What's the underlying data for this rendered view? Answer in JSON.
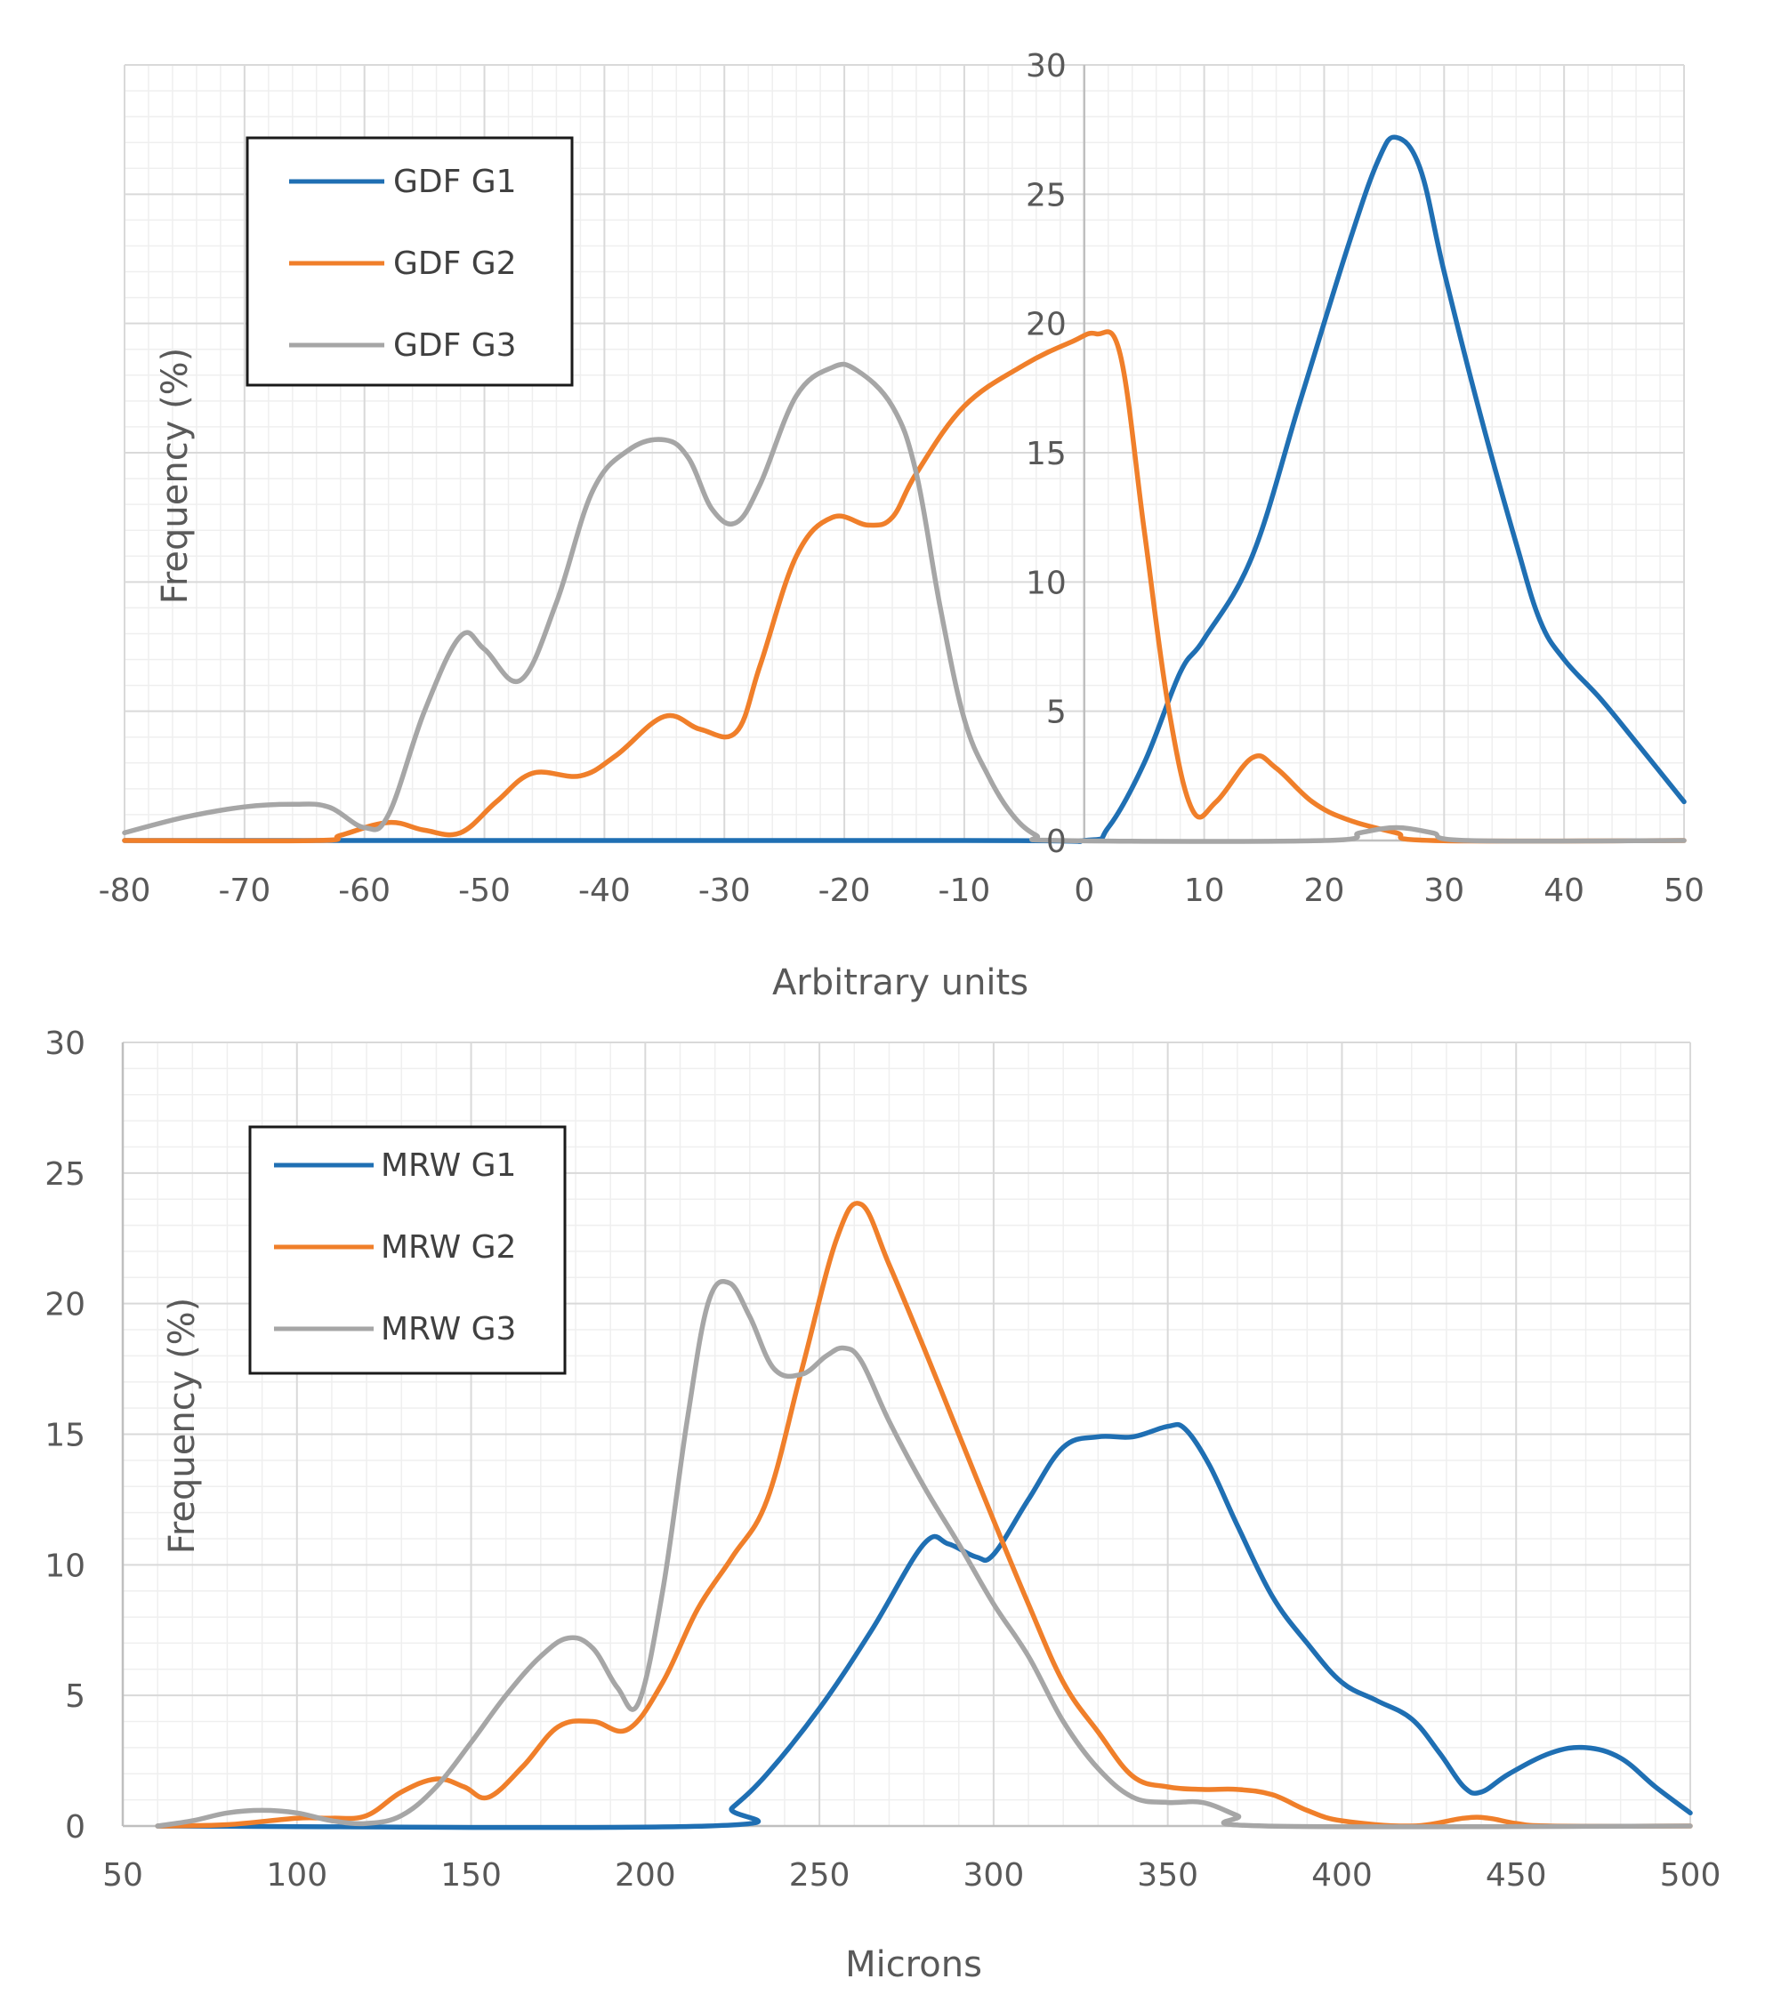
{
  "chart_data": [
    {
      "type": "line",
      "xlabel": "Arbitrary units",
      "ylabel": "Frequency (%)",
      "xlim": [
        -80,
        50
      ],
      "ylim": [
        0,
        30
      ],
      "x_ticks": [
        "-80",
        "-70",
        "-60",
        "-50",
        "-40",
        "-30",
        "-20",
        "-10",
        "0",
        "10",
        "20",
        "30",
        "40",
        "50"
      ],
      "y_ticks": [
        "0",
        "5",
        "10",
        "15",
        "20",
        "25",
        "30"
      ],
      "grid": true,
      "legend_position": "top-left",
      "series": [
        {
          "name": "GDF G1",
          "color": "#1f6fb3",
          "points": [
            [
              -80,
              0
            ],
            [
              -10,
              0
            ],
            [
              0,
              0
            ],
            [
              2,
              0.5
            ],
            [
              5,
              3
            ],
            [
              8,
              6.5
            ],
            [
              10,
              7.8
            ],
            [
              14,
              11
            ],
            [
              18,
              17
            ],
            [
              22,
              23
            ],
            [
              24.5,
              26.3
            ],
            [
              26,
              27.2
            ],
            [
              28,
              26
            ],
            [
              30,
              22
            ],
            [
              33,
              16.5
            ],
            [
              36,
              11.5
            ],
            [
              38,
              8.5
            ],
            [
              40,
              7
            ],
            [
              43,
              5.5
            ],
            [
              46,
              3.8
            ],
            [
              50,
              1.5
            ]
          ]
        },
        {
          "name": "GDF G2",
          "color": "#f07f2a",
          "points": [
            [
              -80,
              0
            ],
            [
              -64,
              0
            ],
            [
              -62,
              0.2
            ],
            [
              -58,
              0.7
            ],
            [
              -55,
              0.4
            ],
            [
              -52,
              0.3
            ],
            [
              -49,
              1.5
            ],
            [
              -46,
              2.6
            ],
            [
              -42,
              2.5
            ],
            [
              -39,
              3.3
            ],
            [
              -35,
              4.8
            ],
            [
              -32,
              4.3
            ],
            [
              -29,
              4.2
            ],
            [
              -27,
              6.8
            ],
            [
              -24,
              11
            ],
            [
              -21,
              12.5
            ],
            [
              -18,
              12.2
            ],
            [
              -16,
              12.5
            ],
            [
              -14,
              14.2
            ],
            [
              -10,
              16.8
            ],
            [
              -5,
              18.4
            ],
            [
              -1,
              19.3
            ],
            [
              1,
              19.6
            ],
            [
              3,
              18.8
            ],
            [
              5,
              12
            ],
            [
              7,
              5.2
            ],
            [
              9,
              1.2
            ],
            [
              11,
              1.5
            ],
            [
              14,
              3.2
            ],
            [
              16,
              2.8
            ],
            [
              19,
              1.5
            ],
            [
              22,
              0.8
            ],
            [
              26,
              0.3
            ],
            [
              29,
              0
            ],
            [
              50,
              0
            ]
          ]
        },
        {
          "name": "GDF G3",
          "color": "#a6a6a6",
          "points": [
            [
              -80,
              0.3
            ],
            [
              -75,
              0.9
            ],
            [
              -70,
              1.3
            ],
            [
              -66,
              1.4
            ],
            [
              -63,
              1.3
            ],
            [
              -60,
              0.5
            ],
            [
              -58,
              1
            ],
            [
              -55,
              5
            ],
            [
              -52,
              7.9
            ],
            [
              -50,
              7.4
            ],
            [
              -47,
              6.2
            ],
            [
              -44,
              9.2
            ],
            [
              -41,
              13.5
            ],
            [
              -38,
              15.1
            ],
            [
              -35,
              15.5
            ],
            [
              -33,
              14.8
            ],
            [
              -31,
              12.8
            ],
            [
              -29,
              12.3
            ],
            [
              -27,
              13.8
            ],
            [
              -24,
              17.2
            ],
            [
              -21,
              18.3
            ],
            [
              -19,
              18.2
            ],
            [
              -16,
              16.8
            ],
            [
              -14,
              14.2
            ],
            [
              -12,
              9
            ],
            [
              -10,
              4.7
            ],
            [
              -8,
              2.5
            ],
            [
              -6,
              1
            ],
            [
              -4,
              0.2
            ],
            [
              -2,
              0
            ],
            [
              20,
              0
            ],
            [
              23,
              0.3
            ],
            [
              26,
              0.5
            ],
            [
              29,
              0.3
            ],
            [
              32,
              0
            ],
            [
              50,
              0
            ]
          ]
        }
      ]
    },
    {
      "type": "line",
      "xlabel": "Microns",
      "ylabel": "Frequency (%)",
      "xlim": [
        50,
        500
      ],
      "ylim": [
        0,
        30
      ],
      "x_ticks": [
        "50",
        "100",
        "150",
        "200",
        "250",
        "300",
        "350",
        "400",
        "450",
        "500"
      ],
      "y_ticks": [
        "0",
        "5",
        "10",
        "15",
        "20",
        "25",
        "30"
      ],
      "grid": true,
      "legend_position": "top-left",
      "series": [
        {
          "name": "MRW G1",
          "color": "#1f6fb3",
          "points": [
            [
              60,
              0
            ],
            [
              218,
              0
            ],
            [
              225,
              0.7
            ],
            [
              235,
              2
            ],
            [
              250,
              4.5
            ],
            [
              265,
              7.5
            ],
            [
              280,
              10.8
            ],
            [
              287,
              10.8
            ],
            [
              295,
              10.3
            ],
            [
              300,
              10.4
            ],
            [
              310,
              12.5
            ],
            [
              320,
              14.5
            ],
            [
              330,
              14.9
            ],
            [
              340,
              14.9
            ],
            [
              350,
              15.3
            ],
            [
              355,
              15.2
            ],
            [
              362,
              13.8
            ],
            [
              370,
              11.5
            ],
            [
              380,
              8.8
            ],
            [
              390,
              7
            ],
            [
              400,
              5.5
            ],
            [
              410,
              4.8
            ],
            [
              420,
              4.1
            ],
            [
              428,
              2.8
            ],
            [
              435,
              1.5
            ],
            [
              440,
              1.3
            ],
            [
              448,
              2
            ],
            [
              460,
              2.8
            ],
            [
              470,
              3
            ],
            [
              480,
              2.6
            ],
            [
              490,
              1.5
            ],
            [
              500,
              0.5
            ]
          ]
        },
        {
          "name": "MRW G2",
          "color": "#f07f2a",
          "points": [
            [
              60,
              0
            ],
            [
              80,
              0.05
            ],
            [
              100,
              0.3
            ],
            [
              110,
              0.3
            ],
            [
              120,
              0.4
            ],
            [
              130,
              1.3
            ],
            [
              140,
              1.8
            ],
            [
              148,
              1.5
            ],
            [
              155,
              1.1
            ],
            [
              165,
              2.3
            ],
            [
              175,
              3.8
            ],
            [
              185,
              4
            ],
            [
              195,
              3.7
            ],
            [
              205,
              5.5
            ],
            [
              215,
              8.3
            ],
            [
              225,
              10.3
            ],
            [
              235,
              12.5
            ],
            [
              245,
              17.5
            ],
            [
              255,
              22.5
            ],
            [
              262,
              23.8
            ],
            [
              270,
              21.5
            ],
            [
              280,
              18.3
            ],
            [
              290,
              15
            ],
            [
              300,
              11.7
            ],
            [
              310,
              8.5
            ],
            [
              320,
              5.5
            ],
            [
              330,
              3.6
            ],
            [
              340,
              1.9
            ],
            [
              350,
              1.5
            ],
            [
              360,
              1.4
            ],
            [
              370,
              1.4
            ],
            [
              380,
              1.2
            ],
            [
              390,
              0.6
            ],
            [
              400,
              0.2
            ],
            [
              420,
              0
            ],
            [
              435,
              0.3
            ],
            [
              442,
              0.3
            ],
            [
              450,
              0.1
            ],
            [
              460,
              0
            ],
            [
              500,
              0
            ]
          ]
        },
        {
          "name": "MRW G3",
          "color": "#a6a6a6",
          "points": [
            [
              60,
              0
            ],
            [
              70,
              0.2
            ],
            [
              80,
              0.5
            ],
            [
              90,
              0.6
            ],
            [
              100,
              0.5
            ],
            [
              110,
              0.2
            ],
            [
              120,
              0.1
            ],
            [
              130,
              0.4
            ],
            [
              140,
              1.5
            ],
            [
              150,
              3.2
            ],
            [
              160,
              5
            ],
            [
              170,
              6.5
            ],
            [
              178,
              7.2
            ],
            [
              185,
              6.8
            ],
            [
              192,
              5.3
            ],
            [
              198,
              4.7
            ],
            [
              205,
              9
            ],
            [
              212,
              15.5
            ],
            [
              218,
              20
            ],
            [
              224,
              20.8
            ],
            [
              230,
              19.5
            ],
            [
              237,
              17.5
            ],
            [
              245,
              17.3
            ],
            [
              252,
              18
            ],
            [
              257,
              18.3
            ],
            [
              262,
              17.8
            ],
            [
              270,
              15.5
            ],
            [
              280,
              13
            ],
            [
              290,
              10.8
            ],
            [
              300,
              8.5
            ],
            [
              310,
              6.5
            ],
            [
              320,
              4
            ],
            [
              330,
              2.2
            ],
            [
              340,
              1.1
            ],
            [
              350,
              0.9
            ],
            [
              360,
              0.9
            ],
            [
              370,
              0.4
            ],
            [
              378,
              0
            ],
            [
              500,
              0
            ]
          ]
        }
      ]
    }
  ]
}
